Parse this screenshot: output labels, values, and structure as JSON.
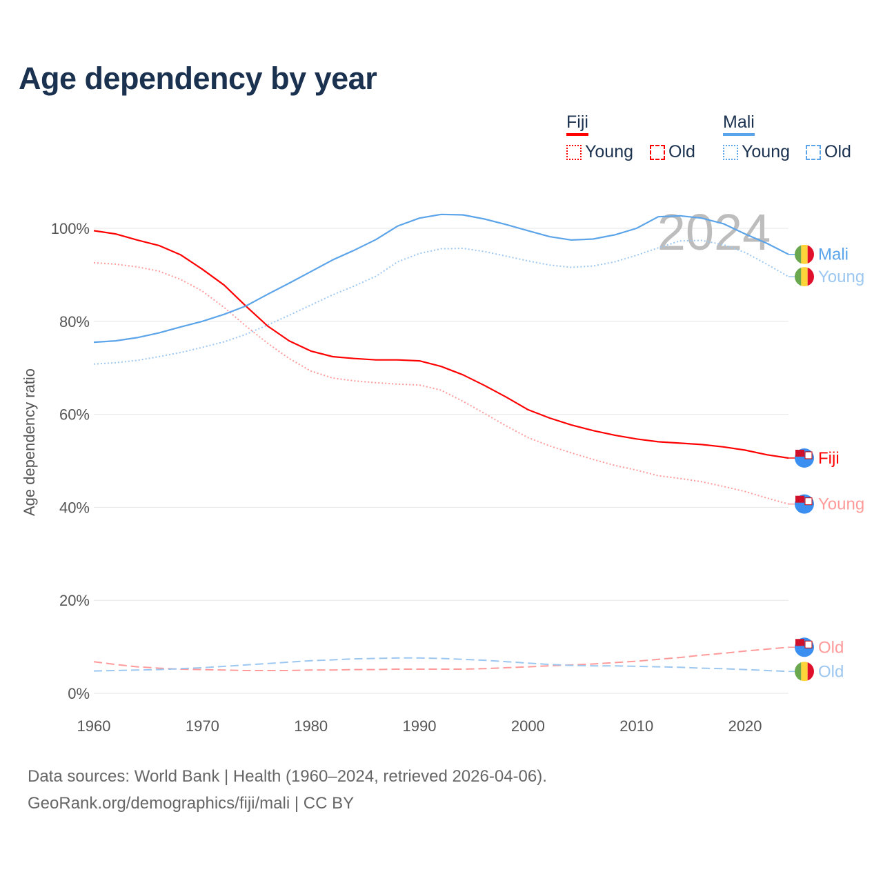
{
  "title": "Age dependency by year",
  "legend": {
    "countries": [
      {
        "name": "Fiji",
        "color": "#ff0000",
        "young_label": "Young",
        "old_label": "Old"
      },
      {
        "name": "Mali",
        "color": "#5ba4ea",
        "young_label": "Young",
        "old_label": "Old"
      }
    ]
  },
  "footer": {
    "line1": "Data sources: World Bank | Health (1960–2024, retrieved 2026-04-06).",
    "line2": "GeoRank.org/demographics/fiji/mali | CC BY"
  },
  "chart_data": {
    "type": "line",
    "title": "Age dependency by year",
    "xlabel": "",
    "ylabel": "Age dependency ratio",
    "watermark_year": "2024",
    "xlim": [
      1960,
      2024
    ],
    "ylim": [
      0,
      100
    ],
    "x_ticks": [
      1960,
      1970,
      1980,
      1990,
      2000,
      2010,
      2020
    ],
    "y_ticks": [
      0,
      20,
      40,
      60,
      80,
      100
    ],
    "y_tick_labels": [
      "0%",
      "20%",
      "40%",
      "60%",
      "80%",
      "100%"
    ],
    "grid": true,
    "legend_position": "top-right",
    "x": [
      1960,
      1962,
      1964,
      1966,
      1968,
      1970,
      1972,
      1974,
      1976,
      1978,
      1980,
      1982,
      1984,
      1986,
      1988,
      1990,
      1992,
      1994,
      1996,
      1998,
      2000,
      2002,
      2004,
      2006,
      2008,
      2010,
      2012,
      2014,
      2016,
      2018,
      2020,
      2022,
      2024
    ],
    "series": [
      {
        "name": "Fiji",
        "end_label": "Fiji",
        "country": "fiji",
        "style": "solid",
        "color": "#ff0000",
        "width": 2.2,
        "values": [
          99.5,
          98.8,
          97.5,
          96.3,
          94.3,
          91.2,
          87.8,
          83.3,
          79,
          75.8,
          73.6,
          72.4,
          72,
          71.7,
          71.7,
          71.5,
          70.3,
          68.5,
          66.2,
          63.7,
          61,
          59.2,
          57.7,
          56.5,
          55.5,
          54.7,
          54.1,
          53.8,
          53.5,
          53,
          52.3,
          51.3,
          50.6
        ]
      },
      {
        "name": "Fiji Young",
        "end_label": "Young",
        "country": "fiji",
        "style": "dotted",
        "color": "#ff9a9a",
        "width": 2,
        "values": [
          92.6,
          92.3,
          91.7,
          90.8,
          89,
          86.5,
          83,
          79,
          75.3,
          72,
          69.3,
          67.8,
          67.2,
          66.8,
          66.5,
          66.3,
          65.2,
          62.8,
          60.2,
          57.5,
          55,
          53.2,
          51.7,
          50.3,
          49,
          48,
          46.8,
          46.2,
          45.5,
          44.5,
          43.4,
          42,
          40.7
        ]
      },
      {
        "name": "Fiji Old",
        "end_label": "Old",
        "country": "fiji",
        "style": "dashed",
        "color": "#ff9a9a",
        "width": 2,
        "values": [
          6.8,
          6.2,
          5.7,
          5.4,
          5.2,
          5.1,
          5,
          4.9,
          4.9,
          4.9,
          5,
          5,
          5.1,
          5.1,
          5.2,
          5.2,
          5.2,
          5.2,
          5.3,
          5.5,
          5.7,
          5.9,
          6.1,
          6.3,
          6.6,
          6.9,
          7.3,
          7.7,
          8.2,
          8.6,
          9.1,
          9.5,
          9.9
        ]
      },
      {
        "name": "Mali",
        "end_label": "Mali",
        "country": "mali",
        "style": "solid",
        "color": "#5ba4ea",
        "width": 2.2,
        "values": [
          75.5,
          75.8,
          76.5,
          77.5,
          78.8,
          80,
          81.5,
          83.3,
          85.8,
          88.2,
          90.7,
          93.2,
          95.3,
          97.6,
          100.5,
          102.2,
          103,
          102.9,
          102,
          100.8,
          99.5,
          98.2,
          97.5,
          97.7,
          98.6,
          100,
          102.5,
          102.7,
          102.2,
          101,
          98.8,
          96.8,
          94.4
        ]
      },
      {
        "name": "Mali Young",
        "end_label": "Young",
        "country": "mali",
        "style": "dotted",
        "color": "#9cc7f0",
        "width": 2,
        "values": [
          70.8,
          71.1,
          71.6,
          72.4,
          73.3,
          74.4,
          75.6,
          77.2,
          79.2,
          81.3,
          83.5,
          85.7,
          87.6,
          89.7,
          92.8,
          94.6,
          95.6,
          95.7,
          95,
          94,
          93,
          92.1,
          91.6,
          91.9,
          92.8,
          94.2,
          95.8,
          97.3,
          97.4,
          96.5,
          94.8,
          92.3,
          89.6
        ]
      },
      {
        "name": "Mali Old",
        "end_label": "Old",
        "country": "mali",
        "style": "dashed",
        "color": "#9cc7f0",
        "width": 2,
        "values": [
          4.8,
          4.9,
          5,
          5.1,
          5.3,
          5.5,
          5.8,
          6.1,
          6.4,
          6.7,
          7,
          7.2,
          7.4,
          7.5,
          7.6,
          7.6,
          7.5,
          7.3,
          7.1,
          6.8,
          6.5,
          6.2,
          6,
          5.9,
          5.9,
          5.8,
          5.7,
          5.6,
          5.4,
          5.3,
          5.1,
          4.9,
          4.7
        ]
      }
    ]
  }
}
